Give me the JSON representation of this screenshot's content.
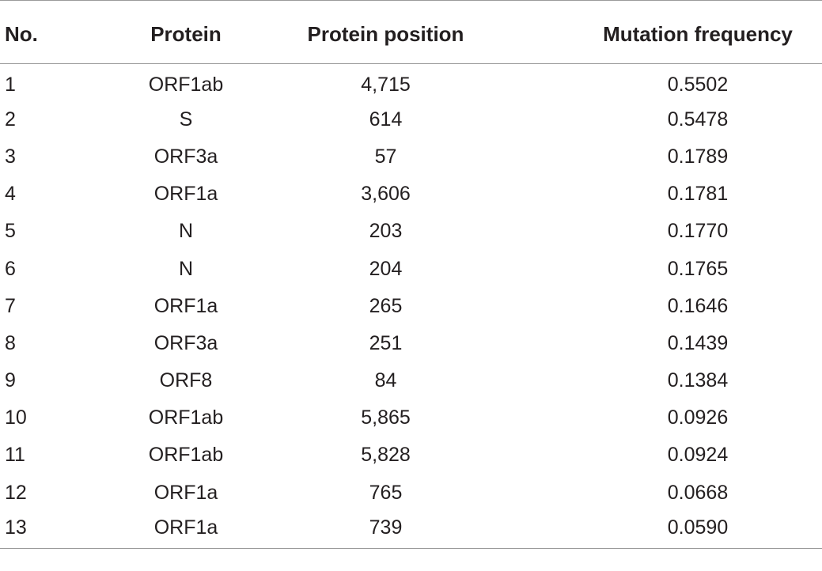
{
  "table": {
    "headers": {
      "no": "No.",
      "protein": "Protein",
      "position": "Protein position",
      "frequency": "Mutation frequency"
    },
    "rows": [
      {
        "no": "1",
        "protein": "ORF1ab",
        "position": "4,715",
        "frequency": "0.5502"
      },
      {
        "no": "2",
        "protein": "S",
        "position": "614",
        "frequency": "0.5478"
      },
      {
        "no": "3",
        "protein": "ORF3a",
        "position": "57",
        "frequency": "0.1789"
      },
      {
        "no": "4",
        "protein": "ORF1a",
        "position": "3,606",
        "frequency": "0.1781"
      },
      {
        "no": "5",
        "protein": "N",
        "position": "203",
        "frequency": "0.1770"
      },
      {
        "no": "6",
        "protein": "N",
        "position": "204",
        "frequency": "0.1765"
      },
      {
        "no": "7",
        "protein": "ORF1a",
        "position": "265",
        "frequency": "0.1646"
      },
      {
        "no": "8",
        "protein": "ORF3a",
        "position": "251",
        "frequency": "0.1439"
      },
      {
        "no": "9",
        "protein": "ORF8",
        "position": "84",
        "frequency": "0.1384"
      },
      {
        "no": "10",
        "protein": "ORF1ab",
        "position": "5,865",
        "frequency": "0.0926"
      },
      {
        "no": "11",
        "protein": "ORF1ab",
        "position": "5,828",
        "frequency": "0.0924"
      },
      {
        "no": "12",
        "protein": "ORF1a",
        "position": "765",
        "frequency": "0.0668"
      },
      {
        "no": "13",
        "protein": "ORF1a",
        "position": "739",
        "frequency": "0.0590"
      }
    ]
  }
}
